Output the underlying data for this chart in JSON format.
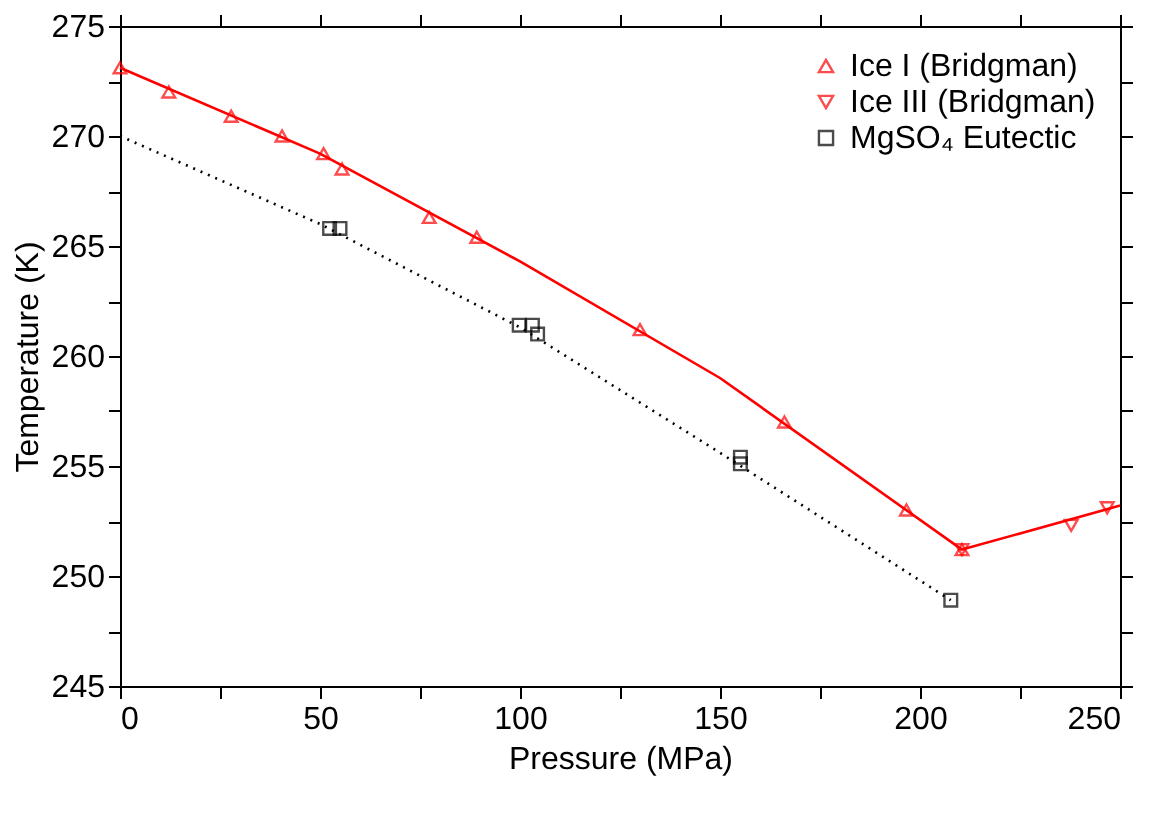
{
  "chart_data": {
    "type": "scatter",
    "xlabel": "Pressure (MPa)",
    "ylabel": "Temperature (K)",
    "series": [
      {
        "name": "Ice I (Bridgman)",
        "color": "#ff0000",
        "marker": "triangle",
        "x": [
          0,
          12.2,
          27.8,
          40.5,
          50.9,
          55.5,
          77.3,
          89.2,
          130,
          166.1,
          196.6,
          210.5
        ],
        "values": [
          273.1,
          272.0,
          270.9,
          270.0,
          269.2,
          268.5,
          266.3,
          265.4,
          261.2,
          257.0,
          253.0,
          251.2
        ]
      },
      {
        "name": "Ice III (Bridgman)",
        "color": "#ff0000",
        "marker": "triangle-down",
        "x": [
          210.5,
          237.8,
          246.8
        ],
        "values": [
          251.2,
          252.3,
          253.1
        ]
      },
      {
        "name": "MgSO₄ Eutectic",
        "color": "#000000",
        "marker": "square",
        "x": [
          52.4,
          55.0,
          99.8,
          103.1,
          104.4,
          155.1,
          155.1,
          207.7
        ],
        "values": [
          265.8,
          265.8,
          261.4,
          261.4,
          261.0,
          255.4,
          255.1,
          248.9
        ]
      },
      {
        "type": "line",
        "color": "#ff0000",
        "line_style": "solid",
        "x": [
          0,
          50,
          100,
          150,
          210.5,
          250
        ],
        "values": [
          273.1,
          269.2,
          264.3,
          259.0,
          251.2,
          253.2
        ]
      },
      {
        "type": "line",
        "color": "#000000",
        "line_style": "dotted",
        "x": [
          0,
          50,
          100,
          150,
          207.7
        ],
        "values": [
          270.0,
          266.0,
          261.3,
          255.6,
          248.9
        ]
      }
    ],
    "xlim": [
      0,
      250
    ],
    "ylim": [
      245,
      275
    ],
    "xticks": [
      0,
      {
        "value": 25,
        "label": null
      },
      50,
      {
        "value": 75,
        "label": null
      },
      100,
      {
        "value": 125,
        "label": null
      },
      150,
      {
        "value": 175,
        "label": null
      },
      200,
      {
        "value": 225,
        "label": null
      },
      250
    ],
    "yticks": [
      245,
      {
        "value": 247.5,
        "label": null
      },
      250,
      {
        "value": 252.5,
        "label": null
      },
      255,
      {
        "value": 257.5,
        "label": null
      },
      260,
      {
        "value": 262.5,
        "label": null
      },
      265,
      {
        "value": 267.5,
        "label": null
      },
      270,
      {
        "value": 272.5,
        "label": null
      },
      275
    ],
    "legend": "top right",
    "grid": false
  }
}
